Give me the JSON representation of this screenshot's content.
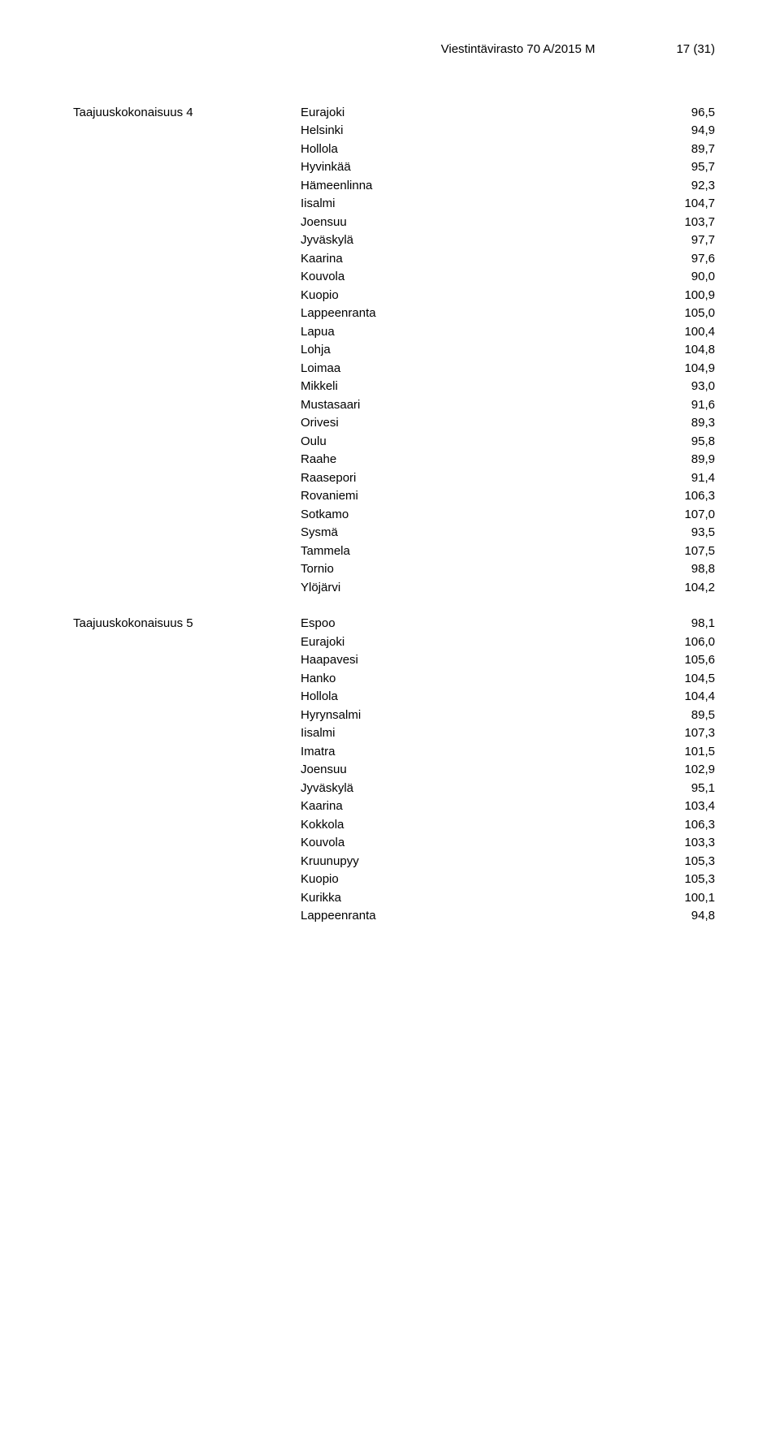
{
  "header": {
    "doc_id": "Viestintävirasto 70 A/2015 M",
    "page_num": "17 (31)"
  },
  "groups": [
    {
      "label": "Taajuuskokonaisuus 4",
      "rows": [
        {
          "city": "Eurajoki",
          "val": "96,5"
        },
        {
          "city": "Helsinki",
          "val": "94,9"
        },
        {
          "city": "Hollola",
          "val": "89,7"
        },
        {
          "city": "Hyvinkää",
          "val": "95,7"
        },
        {
          "city": "Hämeenlinna",
          "val": "92,3"
        },
        {
          "city": "Iisalmi",
          "val": "104,7"
        },
        {
          "city": "Joensuu",
          "val": "103,7"
        },
        {
          "city": "Jyväskylä",
          "val": "97,7"
        },
        {
          "city": "Kaarina",
          "val": "97,6"
        },
        {
          "city": "Kouvola",
          "val": "90,0"
        },
        {
          "city": "Kuopio",
          "val": "100,9"
        },
        {
          "city": "Lappeenranta",
          "val": "105,0"
        },
        {
          "city": "Lapua",
          "val": "100,4"
        },
        {
          "city": "Lohja",
          "val": "104,8"
        },
        {
          "city": "Loimaa",
          "val": "104,9"
        },
        {
          "city": "Mikkeli",
          "val": "93,0"
        },
        {
          "city": "Mustasaari",
          "val": "91,6"
        },
        {
          "city": "Orivesi",
          "val": "89,3"
        },
        {
          "city": "Oulu",
          "val": "95,8"
        },
        {
          "city": "Raahe",
          "val": "89,9"
        },
        {
          "city": "Raasepori",
          "val": "91,4"
        },
        {
          "city": "Rovaniemi",
          "val": "106,3"
        },
        {
          "city": "Sotkamo",
          "val": "107,0"
        },
        {
          "city": "Sysmä",
          "val": "93,5"
        },
        {
          "city": "Tammela",
          "val": "107,5"
        },
        {
          "city": "Tornio",
          "val": "98,8"
        },
        {
          "city": "Ylöjärvi",
          "val": "104,2"
        }
      ]
    },
    {
      "label": "Taajuuskokonaisuus 5",
      "rows": [
        {
          "city": "Espoo",
          "val": "98,1"
        },
        {
          "city": "Eurajoki",
          "val": "106,0"
        },
        {
          "city": "Haapavesi",
          "val": "105,6"
        },
        {
          "city": "Hanko",
          "val": "104,5"
        },
        {
          "city": "Hollola",
          "val": "104,4"
        },
        {
          "city": "Hyrynsalmi",
          "val": "89,5"
        },
        {
          "city": "Iisalmi",
          "val": "107,3"
        },
        {
          "city": "Imatra",
          "val": "101,5"
        },
        {
          "city": "Joensuu",
          "val": "102,9"
        },
        {
          "city": "Jyväskylä",
          "val": "95,1"
        },
        {
          "city": "Kaarina",
          "val": "103,4"
        },
        {
          "city": "Kokkola",
          "val": "106,3"
        },
        {
          "city": "Kouvola",
          "val": "103,3"
        },
        {
          "city": "Kruunupyy",
          "val": "105,3"
        },
        {
          "city": "Kuopio",
          "val": "105,3"
        },
        {
          "city": "Kurikka",
          "val": "100,1"
        },
        {
          "city": "Lappeenranta",
          "val": "94,8"
        }
      ]
    }
  ]
}
